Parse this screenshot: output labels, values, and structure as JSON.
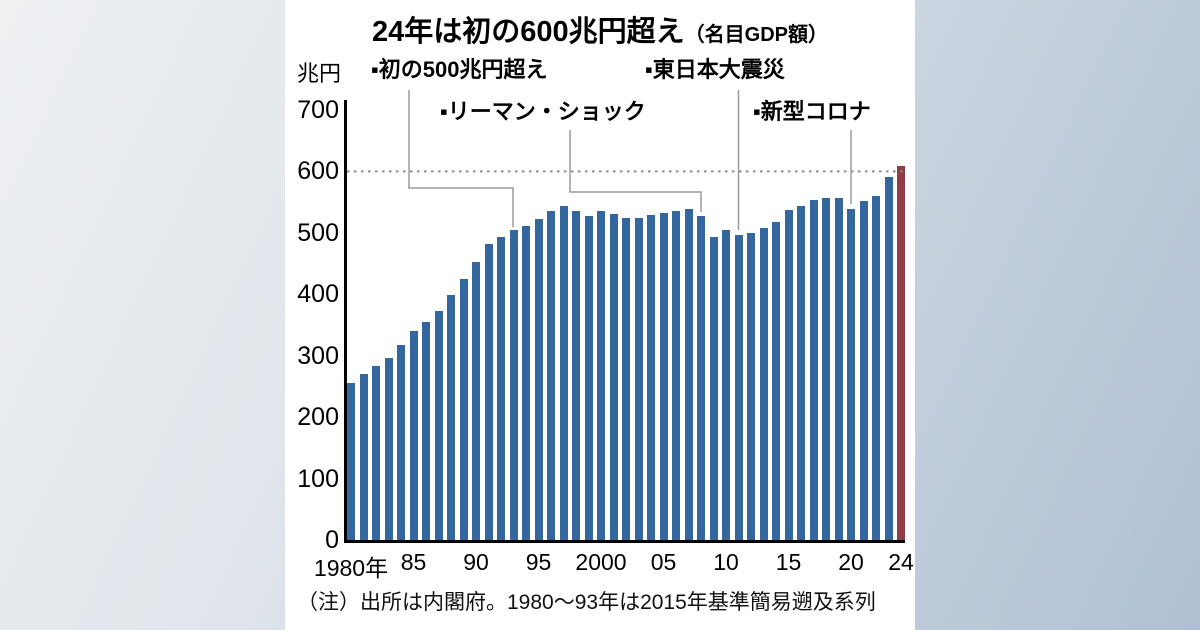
{
  "title": {
    "main": "24年は初の600兆円超え",
    "sub": "（名目GDP額）"
  },
  "unit_label": "兆円",
  "note": "（注）出所は内閣府。1980〜93年は2015年基準簡易遡及系列",
  "annotations": [
    {
      "label": "▪初の500兆円超え",
      "target_year": 1993
    },
    {
      "label": "▪リーマン・ショック",
      "target_year": 2008
    },
    {
      "label": "▪東日本大震災",
      "target_year": 2011
    },
    {
      "label": "▪新型コロナ",
      "target_year": 2020
    }
  ],
  "colors": {
    "bar": "#33679e",
    "bar_highlight": "#8e3e44",
    "axis": "#000000",
    "dotted_line": "#8a8a8a",
    "connector": "#9a9a9a"
  },
  "chart_data": {
    "type": "bar",
    "title": "24年は初の600兆円超え（名目GDP額）",
    "xlabel": "",
    "ylabel": "兆円",
    "ylim": [
      0,
      700
    ],
    "y_ticks": [
      0,
      100,
      200,
      300,
      400,
      500,
      600,
      700
    ],
    "grid": false,
    "legend": "none",
    "reference_line": 600,
    "highlight_year": 2024,
    "years": [
      1980,
      1981,
      1982,
      1983,
      1984,
      1985,
      1986,
      1987,
      1988,
      1989,
      1990,
      1991,
      1992,
      1993,
      1994,
      1995,
      1996,
      1997,
      1998,
      1999,
      2000,
      2001,
      2002,
      2003,
      2004,
      2005,
      2006,
      2007,
      2008,
      2009,
      2010,
      2011,
      2012,
      2013,
      2014,
      2015,
      2016,
      2017,
      2018,
      2019,
      2020,
      2021,
      2022,
      2023,
      2024
    ],
    "values": [
      255,
      270,
      283,
      297,
      318,
      340,
      355,
      373,
      399,
      425,
      453,
      482,
      493,
      505,
      511,
      522,
      535,
      543,
      536,
      528,
      535,
      531,
      524,
      524,
      529,
      532,
      535,
      539,
      527,
      494,
      505,
      497,
      500,
      508,
      518,
      538,
      544,
      553,
      556,
      557,
      539,
      552,
      560,
      591,
      609
    ],
    "x_ticks": [
      {
        "i": 0,
        "label": "1980年"
      },
      {
        "i": 5,
        "label": "85"
      },
      {
        "i": 10,
        "label": "90"
      },
      {
        "i": 15,
        "label": "95"
      },
      {
        "i": 20,
        "label": "2000"
      },
      {
        "i": 25,
        "label": "05"
      },
      {
        "i": 30,
        "label": "10"
      },
      {
        "i": 35,
        "label": "15"
      },
      {
        "i": 40,
        "label": "20"
      },
      {
        "i": 44,
        "label": "24"
      }
    ]
  }
}
